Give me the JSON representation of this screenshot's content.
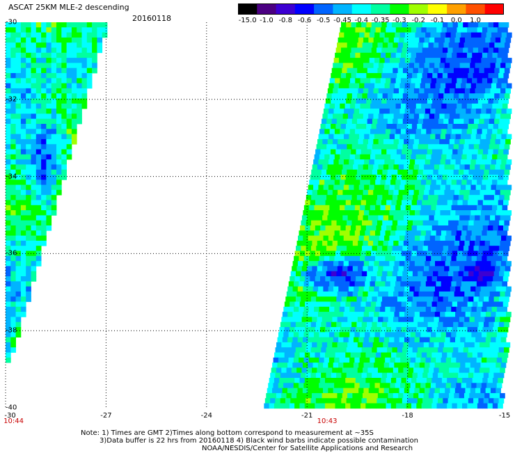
{
  "title": "ASCAT 25KM MLE-2 descending",
  "date": "20160118",
  "colorbar": {
    "labels": [
      "-15.0",
      "-1.0",
      "-0.8",
      "-0.6",
      "-0.5",
      "-0.45",
      "-0.4",
      "-0.35",
      "-0.3",
      "-0.2",
      "-0.1",
      "0.0",
      "1.0"
    ],
    "colors": [
      "#000000",
      "#4b0082",
      "#3c00d2",
      "#0000ff",
      "#0064ff",
      "#00b4ff",
      "#00ffff",
      "#00ffa0",
      "#00ff00",
      "#a0ff00",
      "#ffff00",
      "#ffa000",
      "#ff5000",
      "#ff0000"
    ]
  },
  "map": {
    "lon_ticks": [
      "-30",
      "-27",
      "-24",
      "-21",
      "-18",
      "-15"
    ],
    "lat_ticks": [
      "-30",
      "-32",
      "-34",
      "-36",
      "-38",
      "-40"
    ],
    "grid": true,
    "pass_times": [
      {
        "label": "10:44",
        "lon": -30
      },
      {
        "label": "10:43",
        "lon": -20.4
      }
    ]
  },
  "footer": {
    "line1": "Note: 1) Times are GMT 2)Times along bottom correspond to measurement at ~35S",
    "line2": "3)Data buffer is 22 hrs from 20160118 4) Black wind barbs indicate possible contamination",
    "line3": "NOAA/NESDIS/Center for Satellite Applications and Research"
  }
}
